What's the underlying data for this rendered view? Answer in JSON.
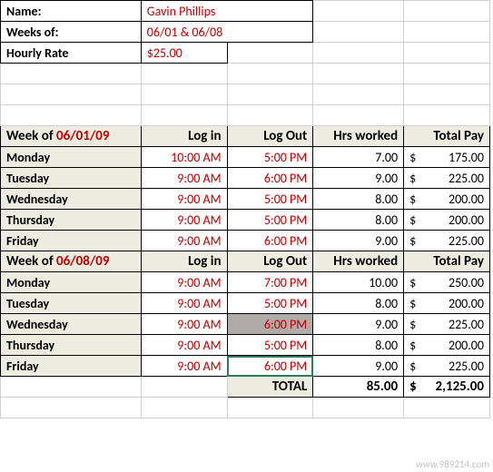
{
  "colors": {
    "accent": "#c00000",
    "header_bg": "#eeece1",
    "border": "#000000",
    "grid": "#d0d0d0",
    "selection_grey": "#b0aaa8",
    "active_outline": "#2e7d5b"
  },
  "header": {
    "name_label": "Name:",
    "name_value": "Gavin Phillips",
    "weeks_label": "Weeks of:",
    "weeks_value": "06/01 & 06/08",
    "rate_label": "Hourly Rate",
    "rate_value": "$25.00"
  },
  "columns": {
    "login": "Log in",
    "logout": "Log Out",
    "hrs": "Hrs worked",
    "total": "Total Pay"
  },
  "weeks": [
    {
      "title_prefix": "Week of ",
      "title_date": "06/01/09",
      "rows": [
        {
          "day": "Monday",
          "login": "10:00 AM",
          "logout": "5:00 PM",
          "hrs": "7.00",
          "cur": "$",
          "pay": "175.00"
        },
        {
          "day": "Tuesday",
          "login": "9:00 AM",
          "logout": "6:00 PM",
          "hrs": "9.00",
          "cur": "$",
          "pay": "225.00"
        },
        {
          "day": "Wednesday",
          "login": "9:00 AM",
          "logout": "5:00 PM",
          "hrs": "8.00",
          "cur": "$",
          "pay": "200.00"
        },
        {
          "day": "Thursday",
          "login": "9:00 AM",
          "logout": "5:00 PM",
          "hrs": "8.00",
          "cur": "$",
          "pay": "200.00"
        },
        {
          "day": "Friday",
          "login": "9:00 AM",
          "logout": "6:00 PM",
          "hrs": "9.00",
          "cur": "$",
          "pay": "225.00"
        }
      ]
    },
    {
      "title_prefix": "Week of ",
      "title_date": "06/08/09",
      "rows": [
        {
          "day": "Monday",
          "login": "9:00 AM",
          "logout": "7:00 PM",
          "hrs": "10.00",
          "cur": "$",
          "pay": "250.00"
        },
        {
          "day": "Tuesday",
          "login": "9:00 AM",
          "logout": "5:00 PM",
          "hrs": "8.00",
          "cur": "$",
          "pay": "200.00"
        },
        {
          "day": "Wednesday",
          "login": "9:00 AM",
          "logout": "6:00 PM",
          "hrs": "9.00",
          "cur": "$",
          "pay": "225.00",
          "sel": true
        },
        {
          "day": "Thursday",
          "login": "9:00 AM",
          "logout": "5:00 PM",
          "hrs": "8.00",
          "cur": "$",
          "pay": "200.00"
        },
        {
          "day": "Friday",
          "login": "9:00 AM",
          "logout": "6:00 PM",
          "hrs": "9.00",
          "cur": "$",
          "pay": "225.00",
          "active": true
        }
      ]
    }
  ],
  "totals": {
    "label": "TOTAL",
    "hrs": "85.00",
    "cur": "$",
    "pay": "2,125.00"
  },
  "watermark": "www.989214.com"
}
